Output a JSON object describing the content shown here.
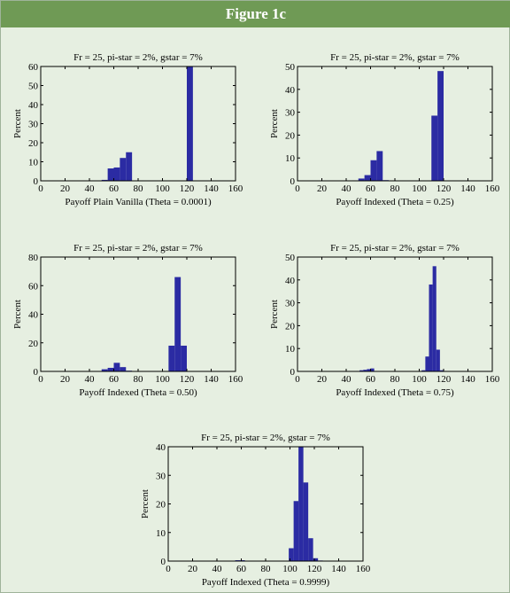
{
  "header": {
    "title": "Figure 1c"
  },
  "colors": {
    "header_bg": "#6f9a55",
    "page_bg": "#e6efe1",
    "bar": "#2b2ba3"
  },
  "chart_data": [
    {
      "type": "bar",
      "title": "Fr = 25, pi-star = 2%, gstar = 7%",
      "xlabel": "Payoff Plain Vanilla (Theta = 0.0001)",
      "ylabel": "Percent",
      "xlim": [
        0,
        160
      ],
      "ylim": [
        0,
        60
      ],
      "xticks": [
        0,
        20,
        40,
        60,
        80,
        100,
        120,
        140,
        160
      ],
      "yticks": [
        0,
        10,
        20,
        30,
        40,
        50,
        60
      ],
      "bin_width": 5,
      "bins": [
        45,
        50,
        55,
        60,
        65,
        70,
        115,
        120
      ],
      "values": [
        0.2,
        0.5,
        6.5,
        7,
        12,
        15,
        0,
        60
      ]
    },
    {
      "type": "bar",
      "title": "Fr = 25, pi-star = 2%, gstar = 7%",
      "xlabel": "Payoff Indexed (Theta = 0.25)",
      "ylabel": "Percent",
      "xlim": [
        0,
        160
      ],
      "ylim": [
        0,
        50
      ],
      "xticks": [
        0,
        20,
        40,
        60,
        80,
        100,
        120,
        140,
        160
      ],
      "yticks": [
        0,
        10,
        20,
        30,
        40,
        50
      ],
      "bin_width": 5,
      "bins": [
        45,
        50,
        55,
        60,
        65,
        70,
        110,
        115,
        120
      ],
      "values": [
        0.2,
        1,
        2.5,
        9,
        13,
        0.3,
        28.5,
        48,
        0
      ]
    },
    {
      "type": "bar",
      "title": "Fr = 25, pi-star = 2%, gstar = 7%",
      "xlabel": "Payoff Indexed (Theta = 0.50)",
      "ylabel": "Percent",
      "xlim": [
        0,
        160
      ],
      "ylim": [
        0,
        80
      ],
      "xticks": [
        0,
        20,
        40,
        60,
        80,
        100,
        120,
        140,
        160
      ],
      "yticks": [
        0,
        20,
        40,
        60,
        80
      ],
      "bin_width": 5,
      "bins": [
        45,
        50,
        55,
        60,
        65,
        70,
        105,
        110,
        115,
        120
      ],
      "values": [
        0.3,
        1.5,
        2.5,
        6,
        3,
        0.5,
        18,
        66,
        18,
        0
      ]
    },
    {
      "type": "bar",
      "title": "Fr = 25, pi-star = 2%, gstar = 7%",
      "xlabel": "Payoff Indexed (Theta = 0.75)",
      "ylabel": "Percent",
      "xlim": [
        0,
        160
      ],
      "ylim": [
        0,
        50
      ],
      "xticks": [
        0,
        20,
        40,
        60,
        80,
        100,
        120,
        140,
        160
      ],
      "yticks": [
        0,
        10,
        20,
        30,
        40,
        50
      ],
      "bin_width": 3,
      "bins": [
        48,
        51,
        54,
        57,
        60,
        102,
        105,
        108,
        111,
        114,
        117,
        120
      ],
      "values": [
        0.2,
        0.5,
        0.7,
        1,
        1.3,
        0.5,
        6.5,
        38,
        46,
        9.5,
        0.5,
        0.2
      ]
    },
    {
      "type": "bar",
      "title": "Fr = 25, pi-star = 2%, gstar = 7%",
      "xlabel": "Payoff Indexed (Theta = 0.9999)",
      "ylabel": "Percent",
      "xlim": [
        0,
        160
      ],
      "ylim": [
        0,
        40
      ],
      "xticks": [
        0,
        20,
        40,
        60,
        80,
        100,
        120,
        140,
        160
      ],
      "yticks": [
        0,
        10,
        20,
        30,
        40
      ],
      "bin_width": 4,
      "bins": [
        55,
        59,
        99,
        103,
        107,
        111,
        115,
        119,
        123
      ],
      "values": [
        0.3,
        0.3,
        4.5,
        21,
        40,
        27.5,
        8,
        1,
        0.2
      ]
    }
  ]
}
